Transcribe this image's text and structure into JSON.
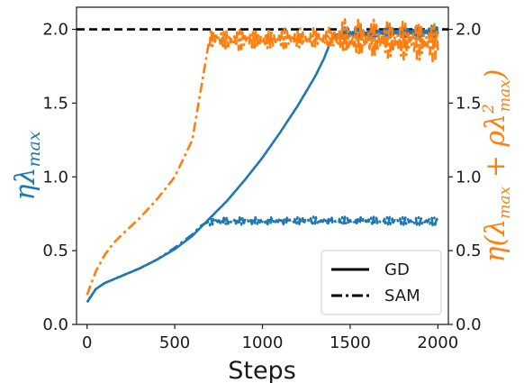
{
  "chart_data": {
    "type": "line",
    "xlabel": "Steps",
    "ylabel_left": "ηλmax",
    "ylabel_right": "η(λmax + ρλ²max)",
    "x_ticks": [
      "0",
      "500",
      "1000",
      "1500",
      "2000"
    ],
    "y_ticks": [
      "0.0",
      "0.5",
      "1.0",
      "1.5",
      "2.0"
    ],
    "y_ticks_right": [
      "0.0",
      "0.5",
      "1.0",
      "1.5",
      "2.0"
    ],
    "xlim": [
      -60,
      2060
    ],
    "ylim": [
      0,
      2.15
    ],
    "reference_line": {
      "y": 2.0,
      "style": "dashed",
      "color": "#000000"
    },
    "colors": {
      "left_axis": "#1f77b4",
      "right_axis": "#ff7f0e"
    },
    "legend": {
      "position": "bottom-right",
      "entries": [
        {
          "label": "GD",
          "style": "solid"
        },
        {
          "label": "SAM",
          "style": "dashdot"
        }
      ]
    },
    "series": [
      {
        "label": "GD",
        "axis": "left",
        "color": "#1f77b4",
        "style": "solid",
        "x": [
          0,
          50,
          100,
          200,
          300,
          400,
          500,
          600,
          700,
          800,
          900,
          1000,
          1100,
          1200,
          1300,
          1350,
          1400,
          1500,
          1600,
          1700,
          1800,
          1900,
          2000
        ],
        "y": [
          0.15,
          0.24,
          0.28,
          0.33,
          0.38,
          0.44,
          0.51,
          0.6,
          0.72,
          0.84,
          0.98,
          1.13,
          1.3,
          1.48,
          1.68,
          1.8,
          1.95,
          1.97,
          1.97,
          1.98,
          1.98,
          1.98,
          1.99
        ],
        "oscillation_from": 1400,
        "oscillation_amplitude": 0.05
      },
      {
        "label": "SAM",
        "axis": "left",
        "color": "#1f77b4",
        "style": "dashdot",
        "x": [
          0,
          50,
          100,
          200,
          300,
          400,
          500,
          600,
          650,
          700,
          800,
          900,
          1000,
          1100,
          1200,
          1300,
          1400,
          1500,
          1600,
          1700,
          1800,
          1900,
          2000
        ],
        "y": [
          0.15,
          0.24,
          0.28,
          0.33,
          0.38,
          0.44,
          0.52,
          0.61,
          0.67,
          0.7,
          0.7,
          0.7,
          0.7,
          0.7,
          0.7,
          0.7,
          0.7,
          0.7,
          0.7,
          0.7,
          0.7,
          0.7,
          0.7
        ],
        "oscillation_from": 700,
        "oscillation_amplitude": 0.03
      },
      {
        "label": "SAM",
        "axis": "right",
        "color": "#ff7f0e",
        "style": "dashdot",
        "x": [
          0,
          50,
          100,
          150,
          200,
          300,
          400,
          500,
          600,
          650,
          700,
          800,
          900,
          1000,
          1100,
          1200,
          1300,
          1400,
          1500,
          1600,
          1700,
          1800,
          1900,
          2000
        ],
        "y": [
          0.2,
          0.36,
          0.47,
          0.55,
          0.61,
          0.72,
          0.85,
          1.0,
          1.25,
          1.6,
          1.95,
          1.93,
          1.93,
          1.93,
          1.93,
          1.93,
          1.93,
          1.93,
          1.92,
          1.92,
          1.92,
          1.92,
          1.92,
          1.92
        ],
        "oscillation_from": 700,
        "oscillation_amplitude": 0.08,
        "oscillation_growth": {
          "from": 1400,
          "amplitude": 0.15
        }
      }
    ]
  }
}
